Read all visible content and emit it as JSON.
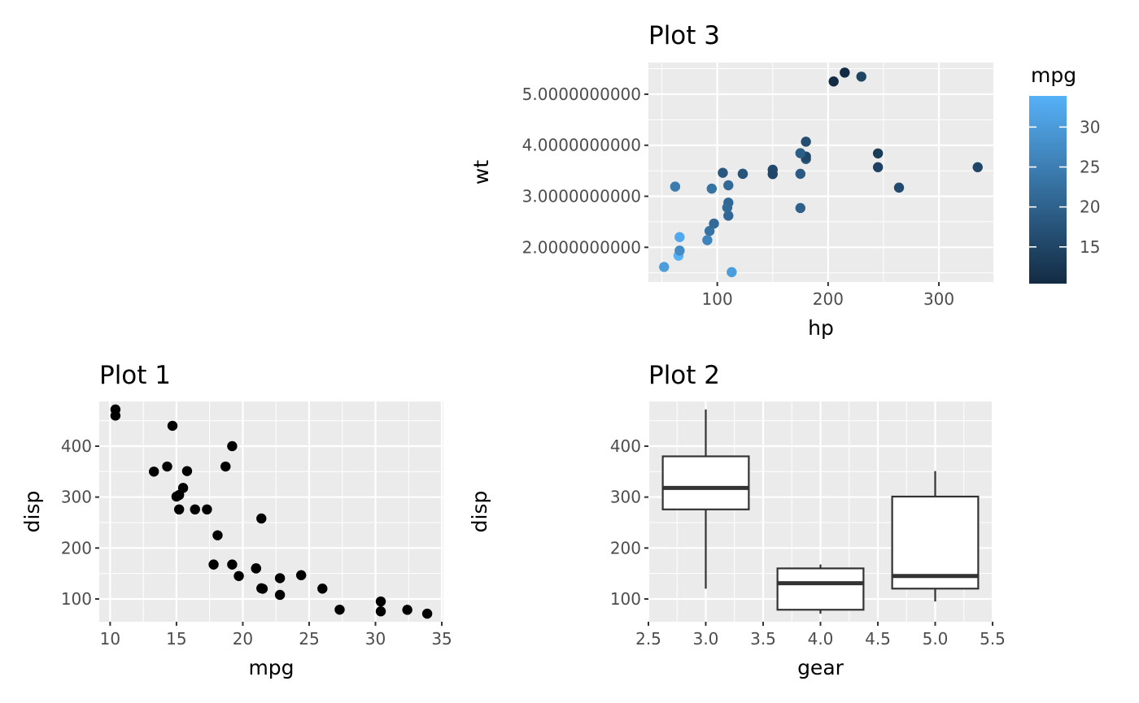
{
  "chart_data": [
    {
      "id": "plot1",
      "type": "scatter",
      "title": "Plot 1",
      "xlabel": "mpg",
      "ylabel": "disp",
      "xlim": [
        9.18,
        35.12
      ],
      "ylim": [
        55.3,
        487.7
      ],
      "x_ticks": [
        10,
        15,
        20,
        25,
        30,
        35
      ],
      "x_tick_labels": [
        "10",
        "15",
        "20",
        "25",
        "30",
        "35"
      ],
      "y_ticks": [
        100,
        200,
        300,
        400
      ],
      "y_tick_labels": [
        "100",
        "200",
        "300",
        "400"
      ],
      "point_color": "#000000",
      "points": [
        [
          21.0,
          160
        ],
        [
          21.0,
          160
        ],
        [
          22.8,
          108
        ],
        [
          21.4,
          258
        ],
        [
          18.7,
          360
        ],
        [
          18.1,
          225
        ],
        [
          14.3,
          360
        ],
        [
          24.4,
          146.7
        ],
        [
          22.8,
          140.8
        ],
        [
          19.2,
          167.6
        ],
        [
          17.8,
          167.6
        ],
        [
          16.4,
          275.8
        ],
        [
          17.3,
          275.8
        ],
        [
          15.2,
          275.8
        ],
        [
          10.4,
          472
        ],
        [
          10.4,
          460
        ],
        [
          14.7,
          440
        ],
        [
          32.4,
          78.7
        ],
        [
          30.4,
          75.7
        ],
        [
          33.9,
          71.1
        ],
        [
          21.5,
          120.1
        ],
        [
          15.5,
          318
        ],
        [
          15.2,
          304
        ],
        [
          13.3,
          350
        ],
        [
          19.2,
          400
        ],
        [
          27.3,
          79
        ],
        [
          26.0,
          120.3
        ],
        [
          30.4,
          95.1
        ],
        [
          15.8,
          351
        ],
        [
          19.7,
          145
        ],
        [
          15.0,
          301
        ],
        [
          21.4,
          121
        ]
      ]
    },
    {
      "id": "plot2",
      "type": "boxplot",
      "title": "Plot 2",
      "xlabel": "gear",
      "ylabel": "disp",
      "xlim": [
        2.5,
        5.5
      ],
      "ylim": [
        55.3,
        487.7
      ],
      "x_ticks": [
        2.5,
        3.0,
        3.5,
        4.0,
        4.5,
        5.0,
        5.5
      ],
      "x_tick_labels": [
        "2.5",
        "3.0",
        "3.5",
        "4.0",
        "4.5",
        "5.0",
        "5.5"
      ],
      "y_ticks": [
        100,
        200,
        300,
        400
      ],
      "y_tick_labels": [
        "100",
        "200",
        "300",
        "400"
      ],
      "box_width": 0.75,
      "boxes": [
        {
          "x": 3,
          "min": 120.1,
          "q1": 275.8,
          "median": 318,
          "q3": 380,
          "max": 472
        },
        {
          "x": 4,
          "min": 71.1,
          "q1": 78.85,
          "median": 130.9,
          "q3": 160,
          "max": 167.6
        },
        {
          "x": 5,
          "min": 95.1,
          "q1": 120.3,
          "median": 145,
          "q3": 301,
          "max": 351
        }
      ]
    },
    {
      "id": "plot3",
      "type": "scatter",
      "title": "Plot 3",
      "xlabel": "hp",
      "ylabel": "wt",
      "xlim": [
        37.85,
        349.15
      ],
      "ylim": [
        1.32,
        5.62
      ],
      "x_ticks": [
        100,
        200,
        300
      ],
      "x_tick_labels": [
        "100",
        "200",
        "300"
      ],
      "y_ticks": [
        2,
        3,
        4,
        5
      ],
      "y_tick_labels": [
        "2.0000000000",
        "3.0000000000",
        "4.0000000000",
        "5.0000000000"
      ],
      "color_by": "mpg",
      "color_low": "#132B43",
      "color_high": "#56B1F7",
      "color_range": [
        10.4,
        33.9
      ],
      "points": [
        [
          110,
          2.62,
          21.0
        ],
        [
          110,
          2.875,
          21.0
        ],
        [
          93,
          2.32,
          22.8
        ],
        [
          110,
          3.215,
          21.4
        ],
        [
          175,
          3.44,
          18.7
        ],
        [
          105,
          3.46,
          18.1
        ],
        [
          245,
          3.57,
          14.3
        ],
        [
          62,
          3.19,
          24.4
        ],
        [
          95,
          3.15,
          22.8
        ],
        [
          123,
          3.44,
          19.2
        ],
        [
          123,
          3.44,
          17.8
        ],
        [
          180,
          4.07,
          16.4
        ],
        [
          180,
          3.73,
          17.3
        ],
        [
          180,
          3.78,
          15.2
        ],
        [
          205,
          5.25,
          10.4
        ],
        [
          215,
          5.424,
          10.4
        ],
        [
          230,
          5.345,
          14.7
        ],
        [
          66,
          2.2,
          32.4
        ],
        [
          52,
          1.615,
          30.4
        ],
        [
          65,
          1.835,
          33.9
        ],
        [
          97,
          2.465,
          21.5
        ],
        [
          150,
          3.52,
          15.5
        ],
        [
          150,
          3.435,
          15.2
        ],
        [
          245,
          3.84,
          13.3
        ],
        [
          175,
          3.845,
          19.2
        ],
        [
          66,
          1.935,
          27.3
        ],
        [
          91,
          2.14,
          26.0
        ],
        [
          113,
          1.513,
          30.4
        ],
        [
          264,
          3.17,
          15.8
        ],
        [
          175,
          2.77,
          19.7
        ],
        [
          335,
          3.57,
          15.0
        ],
        [
          109,
          2.78,
          21.4
        ]
      ],
      "legend": {
        "title": "mpg",
        "ticks": [
          15,
          20,
          25,
          30
        ],
        "tick_labels": [
          "15",
          "20",
          "25",
          "30"
        ]
      }
    }
  ]
}
